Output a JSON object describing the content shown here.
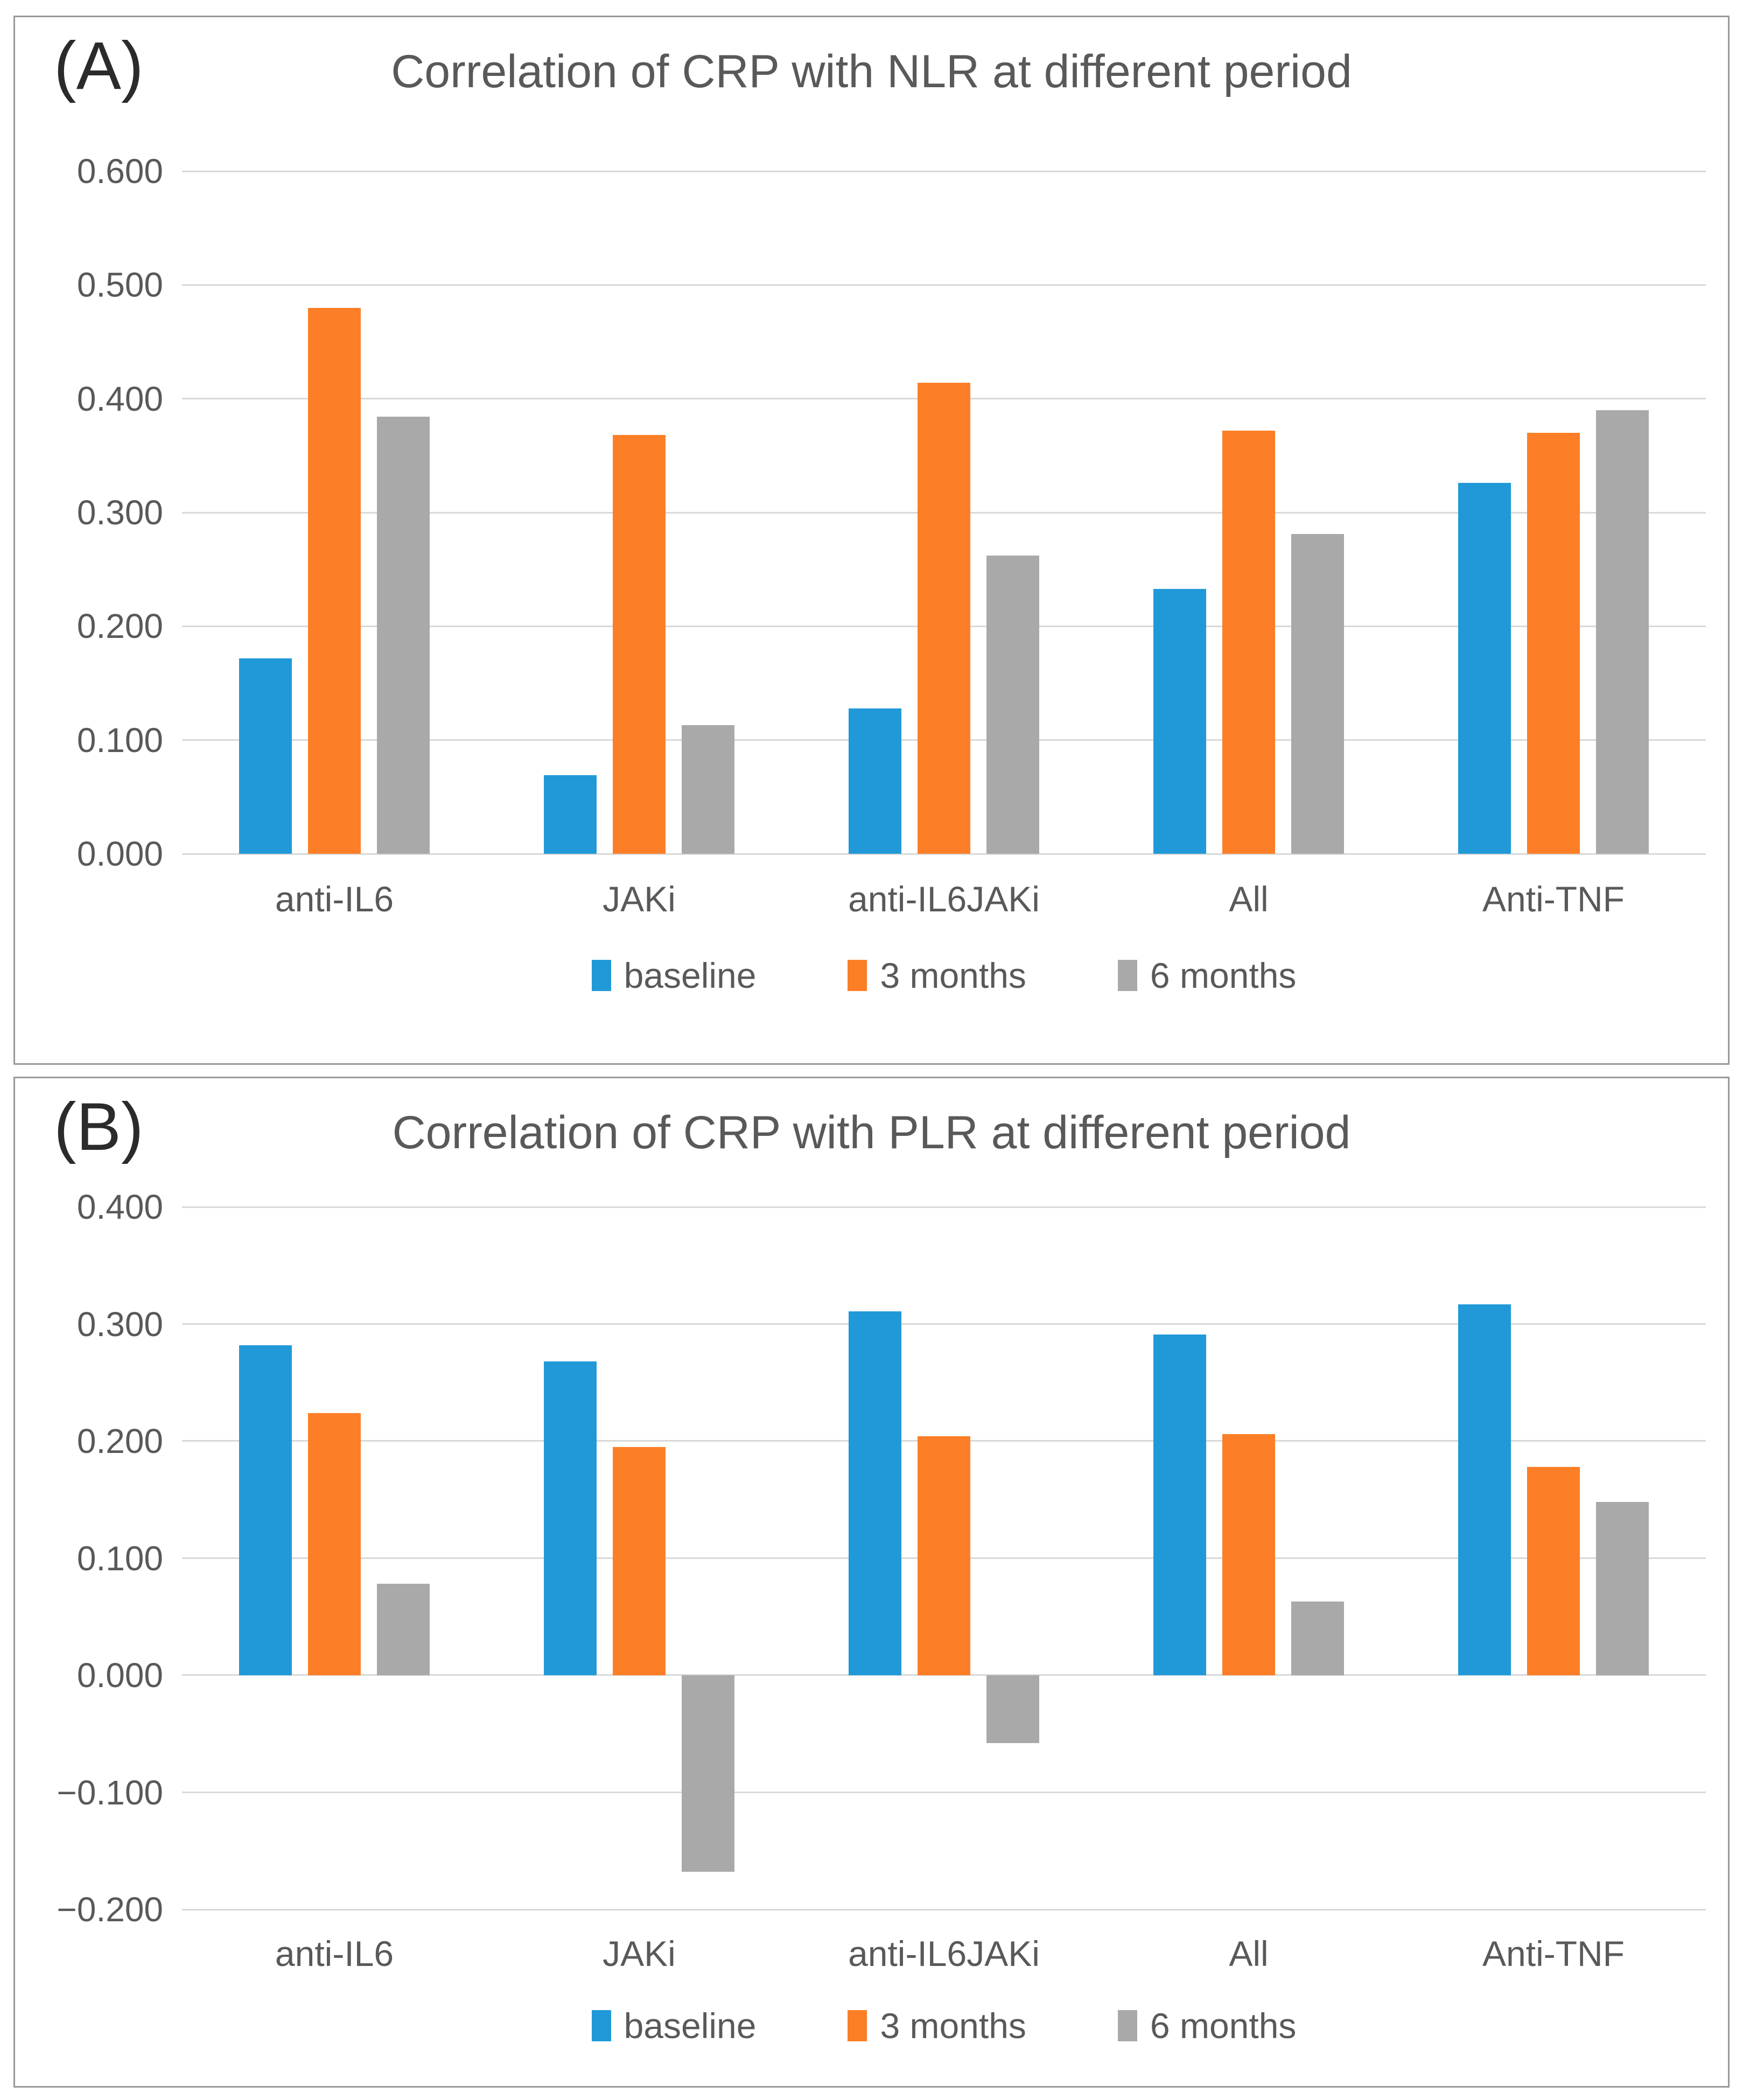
{
  "colors": {
    "baseline_blue": "#2199d8",
    "three_months_orange": "#fc7e27",
    "six_months_gray": "#a9a9a9",
    "gridline_gray": "#d9d9d9",
    "text_gray": "#595959",
    "panel_border_gray": "#999999"
  },
  "chart_data": [
    {
      "type": "bar",
      "panel_label": "(A)",
      "title": "Correlation of CRP with NLR at different period",
      "categories": [
        "anti-IL6",
        "JAKi",
        "anti-IL6JAKi",
        "All",
        "Anti-TNF"
      ],
      "series": [
        {
          "name": "baseline",
          "color": "#2199d8",
          "values": [
            0.172,
            0.069,
            0.128,
            0.233,
            0.326
          ]
        },
        {
          "name": "3 months",
          "color": "#fc7e27",
          "values": [
            0.48,
            0.368,
            0.414,
            0.372,
            0.37
          ]
        },
        {
          "name": "6 months",
          "color": "#a9a9a9",
          "values": [
            0.384,
            0.113,
            0.262,
            0.281,
            0.39
          ]
        }
      ],
      "ylim": [
        0.0,
        0.6
      ],
      "yticks": [
        {
          "value": 0.6,
          "label": "0.600"
        },
        {
          "value": 0.5,
          "label": "0.500"
        },
        {
          "value": 0.4,
          "label": "0.400"
        },
        {
          "value": 0.3,
          "label": "0.300"
        },
        {
          "value": 0.2,
          "label": "0.200"
        },
        {
          "value": 0.1,
          "label": "0.100"
        },
        {
          "value": 0.0,
          "label": "0.000"
        }
      ],
      "grid": true,
      "legend_position": "bottom"
    },
    {
      "type": "bar",
      "panel_label": "(B)",
      "title": "Correlation of CRP with PLR at different period",
      "categories": [
        "anti-IL6",
        "JAKi",
        "anti-IL6JAKi",
        "All",
        "Anti-TNF"
      ],
      "series": [
        {
          "name": "baseline",
          "color": "#2199d8",
          "values": [
            0.282,
            0.268,
            0.311,
            0.291,
            0.317
          ]
        },
        {
          "name": "3 months",
          "color": "#fc7e27",
          "values": [
            0.224,
            0.195,
            0.204,
            0.206,
            0.178
          ]
        },
        {
          "name": "6 months",
          "color": "#a9a9a9",
          "values": [
            0.078,
            -0.168,
            -0.058,
            0.063,
            0.148
          ]
        }
      ],
      "ylim": [
        -0.2,
        0.4
      ],
      "yticks": [
        {
          "value": 0.4,
          "label": "0.400"
        },
        {
          "value": 0.3,
          "label": "0.300"
        },
        {
          "value": 0.2,
          "label": "0.200"
        },
        {
          "value": 0.1,
          "label": "0.100"
        },
        {
          "value": 0.0,
          "label": "0.000"
        },
        {
          "value": -0.1,
          "label": "−0.100"
        },
        {
          "value": -0.2,
          "label": "−0.200"
        }
      ],
      "grid": true,
      "legend_position": "bottom"
    }
  ]
}
